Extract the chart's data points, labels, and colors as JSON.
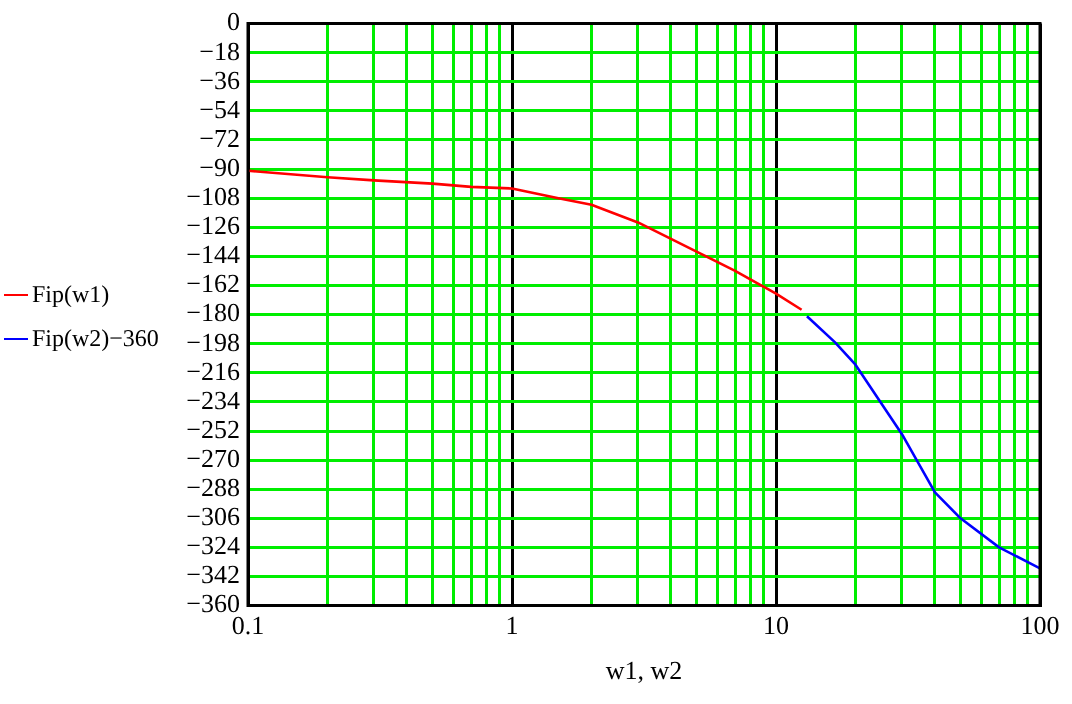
{
  "chart_data": {
    "type": "line",
    "xlabel": "w1, w2",
    "log": "x",
    "grid": true,
    "legend": "left",
    "marker": "none",
    "line_style": "solid",
    "xlim": [
      0.1,
      100
    ],
    "xticks": [
      0.1,
      {
        "value": 0.2,
        "label": null
      },
      {
        "value": 0.3,
        "label": null
      },
      {
        "value": 0.4,
        "label": null
      },
      {
        "value": 0.5,
        "label": null
      },
      {
        "value": 0.6,
        "label": null
      },
      {
        "value": 0.7,
        "label": null
      },
      {
        "value": 0.8,
        "label": null
      },
      {
        "value": 0.9,
        "label": null
      },
      1,
      {
        "value": 2,
        "label": null
      },
      {
        "value": 3,
        "label": null
      },
      {
        "value": 4,
        "label": null
      },
      {
        "value": 5,
        "label": null
      },
      {
        "value": 6,
        "label": null
      },
      {
        "value": 7,
        "label": null
      },
      {
        "value": 8,
        "label": null
      },
      {
        "value": 9,
        "label": null
      },
      10,
      {
        "value": 20,
        "label": null
      },
      {
        "value": 30,
        "label": null
      },
      {
        "value": 40,
        "label": null
      },
      {
        "value": 50,
        "label": null
      },
      {
        "value": 60,
        "label": null
      },
      {
        "value": 70,
        "label": null
      },
      {
        "value": 80,
        "label": null
      },
      {
        "value": 90,
        "label": null
      },
      100
    ],
    "ylim": [
      -360,
      0
    ],
    "yticks": [
      -360,
      -342,
      -324,
      -306,
      -288,
      -270,
      -252,
      -234,
      -216,
      -198,
      -180,
      -162,
      -144,
      -126,
      -108,
      -90,
      -72,
      -54,
      -36,
      -18,
      0
    ],
    "series": [
      {
        "name": "Fip(w1)",
        "color": "#ff0000",
        "x": [
          0.1,
          0.2,
          0.3,
          0.5,
          0.7,
          1,
          1.5,
          2,
          3,
          5,
          7,
          10,
          12.5
        ],
        "values": [
          -91,
          -95,
          -97,
          -99,
          -101,
          -102,
          -108,
          -112,
          -123,
          -141,
          -153,
          -167,
          -177
        ]
      },
      {
        "name": "Fip(w2)−360",
        "color": "#0000ff",
        "x": [
          13.1,
          16.7,
          20,
          30,
          40,
          50,
          70,
          100
        ],
        "values": [
          -181,
          -197,
          -211,
          -254,
          -290,
          -306,
          -324,
          -337
        ]
      }
    ]
  }
}
